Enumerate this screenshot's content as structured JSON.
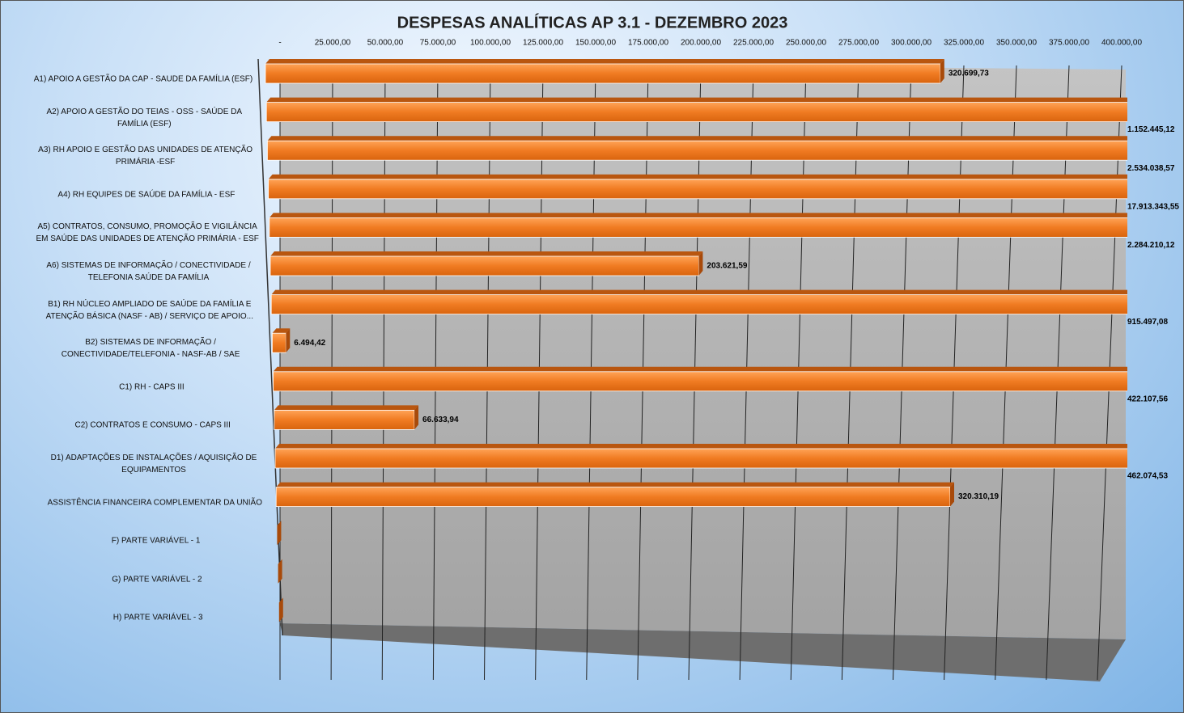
{
  "chart_data": {
    "type": "bar3d",
    "orientation": "horizontal",
    "title": "DESPESAS ANALÍTICAS AP 3.1 - DEZEMBRO 2023",
    "categories": [
      "A1) APOIO A GESTÃO DA CAP - SAUDE DA FAMÍLIA (ESF)",
      "A2) APOIO A GESTÃO DO TEIAS - OSS - SAÚDE DA FAMÍLIA (ESF)",
      "A3) RH APOIO E GESTÃO DAS UNIDADES DE ATENÇÃO PRIMÁRIA -ESF",
      "A4) RH EQUIPES DE SAÚDE DA FAMÍLIA - ESF",
      "A5) CONTRATOS, CONSUMO, PROMOÇÃO E VIGILÂNCIA EM SAÚDE DAS UNIDADES DE ATENÇÃO PRIMÁRIA - ESF",
      "A6) SISTEMAS DE INFORMAÇÃO / CONECTIVIDADE / TELEFONIA SAÚDE DA FAMÍLIA",
      "B1) RH NÚCLEO AMPLIADO DE SAÚDE DA FAMÍLIA E ATENÇÃO BÁSICA (NASF - AB) / SERVIÇO DE APOIO...",
      "B2) SISTEMAS DE INFORMAÇÃO / CONECTIVIDADE/TELEFONIA - NASF-AB / SAE",
      "C1) RH - CAPS III",
      "C2) CONTRATOS E CONSUMO - CAPS III",
      "D1) ADAPTAÇÕES DE INSTALAÇÕES / AQUISIÇÃO DE EQUIPAMENTOS",
      "ASSISTÊNCIA FINANCEIRA COMPLEMENTAR DA UNIÃO",
      "F) PARTE VARIÁVEL - 1",
      "G) PARTE VARIÁVEL - 2",
      "H) PARTE VARIÁVEL - 3"
    ],
    "values": [
      320699.73,
      1152445.12,
      2534038.57,
      17913343.55,
      2284210.12,
      203621.59,
      915497.08,
      6494.42,
      422107.56,
      66633.94,
      462074.53,
      320310.19,
      0,
      0,
      0
    ],
    "value_labels": [
      "320.699,73",
      "1.152.445,12",
      "2.534.038,57",
      "17.913.343,55",
      "2.284.210,12",
      "203.621,59",
      "915.497,08",
      "6.494,42",
      "422.107,56",
      "66.633,94",
      "462.074,53",
      "320.310,19",
      null,
      null,
      null
    ],
    "color": "#f07b22",
    "xlim": [
      0,
      400000
    ],
    "xticks": [
      {
        "value": 0,
        "label": "-"
      },
      {
        "value": 25000,
        "label": "25.000,00"
      },
      {
        "value": 50000,
        "label": "50.000,00"
      },
      {
        "value": 75000,
        "label": "75.000,00"
      },
      {
        "value": 100000,
        "label": "100.000,00"
      },
      {
        "value": 125000,
        "label": "125.000,00"
      },
      {
        "value": 150000,
        "label": "150.000,00"
      },
      {
        "value": 175000,
        "label": "175.000,00"
      },
      {
        "value": 200000,
        "label": "200.000,00"
      },
      {
        "value": 225000,
        "label": "225.000,00"
      },
      {
        "value": 250000,
        "label": "250.000,00"
      },
      {
        "value": 275000,
        "label": "275.000,00"
      },
      {
        "value": 300000,
        "label": "300.000,00"
      },
      {
        "value": 325000,
        "label": "325.000,00"
      },
      {
        "value": 350000,
        "label": "350.000,00"
      },
      {
        "value": 375000,
        "label": "375.000,00"
      },
      {
        "value": 400000,
        "label": "400.000,00"
      }
    ],
    "grid": true
  }
}
